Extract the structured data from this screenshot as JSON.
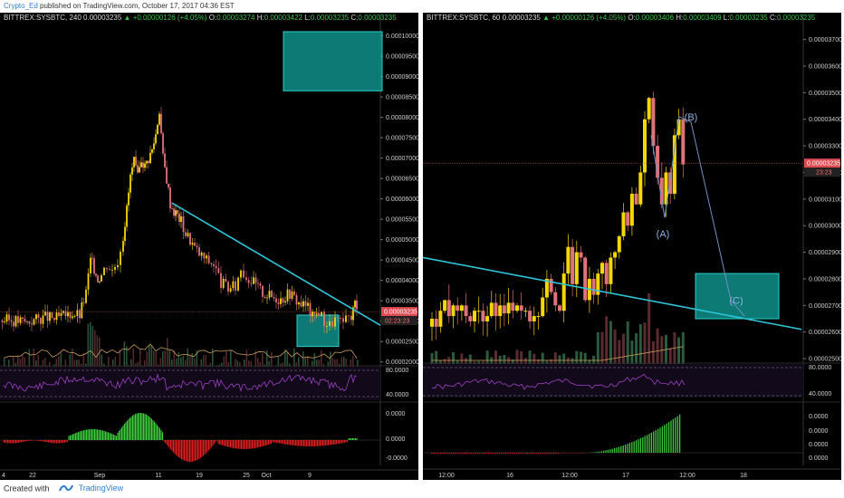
{
  "header": {
    "author": "Crypto_Ed",
    "published": "published on TradingView.com, October 17, 2017 04:36 EST"
  },
  "footer": {
    "created_with": "Created with",
    "brand": "TradingView"
  },
  "colors": {
    "background": "#000000",
    "candle_up": "#f5d800",
    "candle_down": "#e0727a",
    "trendline": "#2ec5d8",
    "target_box": "#0f8f8a",
    "rsi": "#9b3fc2",
    "momentum_up": "#3ecf3e",
    "momentum_down": "#e02020",
    "wave_line": "#6f92c2"
  },
  "left_panel": {
    "symbol": "BITTREX:SYSBTC, 240",
    "last": "0.00003235",
    "change": "+0.00000126 (+4.05%)",
    "o_label": "O:",
    "o": "0.00003274",
    "h_label": "H:",
    "h": "0.00003422",
    "l_label": "L:",
    "l": "0.00003235",
    "c_label": "C:",
    "c": "0.00003235",
    "price_badge": "0.00003235",
    "timer_badge": "02:23:23",
    "rsi_levels": [
      "80.0000",
      "40.0000"
    ],
    "osc_levels": [
      "0.0000",
      "0.0000",
      "-0.0000"
    ],
    "x_ticks": [
      "4",
      "22",
      "Sep",
      "11",
      "19",
      "25",
      "Oct",
      "9"
    ]
  },
  "right_panel": {
    "symbol": "BITTREX:SYSBTC, 60",
    "last": "0.00003235",
    "change": "+0.00000126 (+4.05%)",
    "o_label": "O:",
    "o": "0.00003406",
    "h_label": "H:",
    "h": "0.00003409",
    "l_label": "L:",
    "l": "0.00003235",
    "c_label": "C:",
    "c": "0.00003235",
    "price_badge": "0.00003235",
    "timer_badge": "23:23",
    "rsi_levels": [
      "80.0000",
      "40.0000"
    ],
    "osc_levels": [
      "0.0000",
      "0.0000",
      "0.0000",
      "0.0000"
    ],
    "x_ticks": [
      "12:00",
      "16",
      "12:00",
      "17",
      "12:00",
      "18"
    ],
    "wave_labels": [
      "(A)",
      "(B)",
      "(C)"
    ]
  },
  "chart_data": [
    {
      "type": "candlestick",
      "title": "BITTREX:SYSBTC, 240",
      "x_ticks": [
        "4",
        "22",
        "Sep",
        "11",
        "19",
        "25",
        "Oct",
        "9"
      ],
      "y_ticks": [
        "0.00010000",
        "0.00009500",
        "0.00009000",
        "0.00008500",
        "0.00008000",
        "0.00007500",
        "0.00007000",
        "0.00006500",
        "0.00006000",
        "0.00005500",
        "0.00005000",
        "0.00004500",
        "0.00004000",
        "0.00003500",
        "0.00003000",
        "0.00002500",
        "0.00002000"
      ],
      "ylim": [
        1.95e-05,
        0.000103
      ],
      "close_path": [
        [
          0,
          3.02e-05
        ],
        [
          10,
          3.03e-05
        ],
        [
          20,
          3.01e-05
        ],
        [
          30,
          2.98e-05
        ],
        [
          40,
          3.05e-05
        ],
        [
          50,
          3.1e-05
        ],
        [
          60,
          3.06e-05
        ],
        [
          70,
          3.12e-05
        ],
        [
          80,
          3.2e-05
        ],
        [
          88,
          3.15e-05
        ],
        [
          95,
          3.7e-05
        ],
        [
          100,
          4.5e-05
        ],
        [
          104,
          4.3e-05
        ],
        [
          108,
          4.05e-05
        ],
        [
          112,
          4.15e-05
        ],
        [
          118,
          4.4e-05
        ],
        [
          124,
          4.25e-05
        ],
        [
          130,
          4.5e-05
        ],
        [
          136,
          5.1e-05
        ],
        [
          140,
          5.75e-05
        ],
        [
          144,
          6.55e-05
        ],
        [
          148,
          6.9e-05
        ],
        [
          152,
          6.5e-05
        ],
        [
          156,
          7e-05
        ],
        [
          160,
          6.8e-05
        ],
        [
          164,
          7e-05
        ],
        [
          168,
          7.2e-05
        ],
        [
          172,
          7.6e-05
        ],
        [
          176,
          8.2e-05
        ],
        [
          180,
          7e-05
        ],
        [
          184,
          6.5e-05
        ],
        [
          188,
          5.9e-05
        ],
        [
          192,
          5.7e-05
        ],
        [
          196,
          5.6e-05
        ],
        [
          200,
          5.45e-05
        ],
        [
          205,
          5.15e-05
        ],
        [
          210,
          5e-05
        ],
        [
          215,
          4.8e-05
        ],
        [
          220,
          4.65e-05
        ],
        [
          228,
          4.5e-05
        ],
        [
          236,
          4.4e-05
        ],
        [
          244,
          3.95e-05
        ],
        [
          252,
          3.8e-05
        ],
        [
          260,
          3.85e-05
        ],
        [
          266,
          4.3e-05
        ],
        [
          272,
          4.1e-05
        ],
        [
          280,
          3.95e-05
        ],
        [
          290,
          3.7e-05
        ],
        [
          300,
          3.6e-05
        ],
        [
          310,
          3.55e-05
        ],
        [
          320,
          3.7e-05
        ],
        [
          330,
          3.45e-05
        ],
        [
          340,
          3.35e-05
        ],
        [
          345,
          3.1e-05
        ],
        [
          352,
          3.25e-05
        ],
        [
          358,
          3e-05
        ],
        [
          364,
          2.9e-05
        ],
        [
          370,
          3.05e-05
        ],
        [
          376,
          2.95e-05
        ],
        [
          382,
          3e-05
        ],
        [
          388,
          3.15e-05
        ],
        [
          392,
          3.45e-05
        ],
        [
          394,
          3.24e-05
        ]
      ],
      "trendline": [
        [
          5.9e-05,
          190
        ],
        [
          2.9e-05,
          420
        ]
      ],
      "target_zones": [
        {
          "top": 0.000101,
          "bottom": 8.65e-05
        },
        {
          "top": 3.15e-05,
          "bottom": 2.38e-05
        }
      ],
      "last_price": 3.235e-05
    },
    {
      "type": "candlestick",
      "title": "BITTREX:SYSBTC, 60",
      "x_ticks": [
        "12:00",
        "16",
        "12:00",
        "17",
        "12:00",
        "18"
      ],
      "y_ticks": [
        "0.00003700",
        "0.00003600",
        "0.00003500",
        "0.00003400",
        "0.00003300",
        "0.00003200",
        "0.00003100",
        "0.00003000",
        "0.00002900",
        "0.00002800",
        "0.00002700",
        "0.00002600",
        "0.00002500"
      ],
      "ylim": [
        2.49e-05,
        3.76e-05
      ],
      "closes": [
        2.65e-05,
        2.62e-05,
        2.68e-05,
        2.72e-05,
        2.66e-05,
        2.7e-05,
        2.68e-05,
        2.7e-05,
        2.66e-05,
        2.64e-05,
        2.68e-05,
        2.68e-05,
        2.64e-05,
        2.66e-05,
        2.71e-05,
        2.66e-05,
        2.7e-05,
        2.67e-05,
        2.71e-05,
        2.68e-05,
        2.7e-05,
        2.68e-05,
        2.68e-05,
        2.64e-05,
        2.66e-05,
        2.66e-05,
        2.73e-05,
        2.8e-05,
        2.75e-05,
        2.7e-05,
        2.68e-05,
        2.82e-05,
        2.92e-05,
        2.78e-05,
        2.9e-05,
        2.88e-05,
        2.72e-05,
        2.8e-05,
        2.74e-05,
        2.82e-05,
        2.86e-05,
        2.78e-05,
        2.88e-05,
        2.9e-05,
        2.96e-05,
        3.05e-05,
        3e-05,
        3.12e-05,
        3.08e-05,
        3.2e-05,
        3.4e-05,
        3.48e-05,
        3.3e-05,
        3.18e-05,
        3.08e-05,
        3.2e-05,
        3.12e-05,
        3.34e-05,
        3.4e-05,
        3.23e-05
      ],
      "trendline": [
        [
          2.88e-05,
          0
        ],
        [
          2.61e-05,
          418
        ]
      ],
      "wave_path": [
        [
          252,
          3.34e-05
        ],
        [
          267,
          3.03e-05
        ],
        [
          283,
          3.41e-05
        ],
        [
          296,
          3.39e-05
        ],
        [
          340,
          2.72e-05
        ],
        [
          355,
          2.66e-05
        ]
      ],
      "target_zones": [
        {
          "top": 2.82e-05,
          "bottom": 2.65e-05
        }
      ],
      "last_price": 3.235e-05
    }
  ]
}
